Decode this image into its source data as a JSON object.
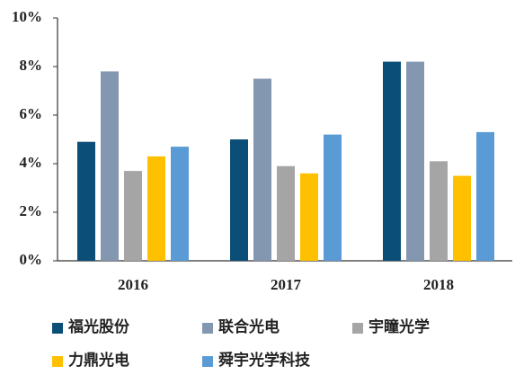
{
  "chart_data": {
    "type": "bar",
    "categories": [
      "2016",
      "2017",
      "2018"
    ],
    "series": [
      {
        "name": "福光股份",
        "color": "#0b4f79",
        "values": [
          4.9,
          5.0,
          8.2
        ]
      },
      {
        "name": "联合光电",
        "color": "#8497b0",
        "values": [
          7.8,
          7.5,
          8.2
        ]
      },
      {
        "name": "宇瞳光学",
        "color": "#a5a5a5",
        "values": [
          3.7,
          3.9,
          4.1
        ]
      },
      {
        "name": "力鼎光电",
        "color": "#ffc000",
        "values": [
          4.3,
          3.6,
          3.5
        ]
      },
      {
        "name": "舜宇光学科技",
        "color": "#5b9bd5",
        "values": [
          4.7,
          5.2,
          5.3
        ]
      }
    ],
    "ylim": [
      0,
      10
    ],
    "yticks": [
      {
        "value": 0,
        "label": "0%"
      },
      {
        "value": 2,
        "label": "2%"
      },
      {
        "value": 4,
        "label": "4%"
      },
      {
        "value": 6,
        "label": "6%"
      },
      {
        "value": 8,
        "label": "8%"
      },
      {
        "value": 10,
        "label": "10%"
      }
    ],
    "legend": "bottom"
  }
}
